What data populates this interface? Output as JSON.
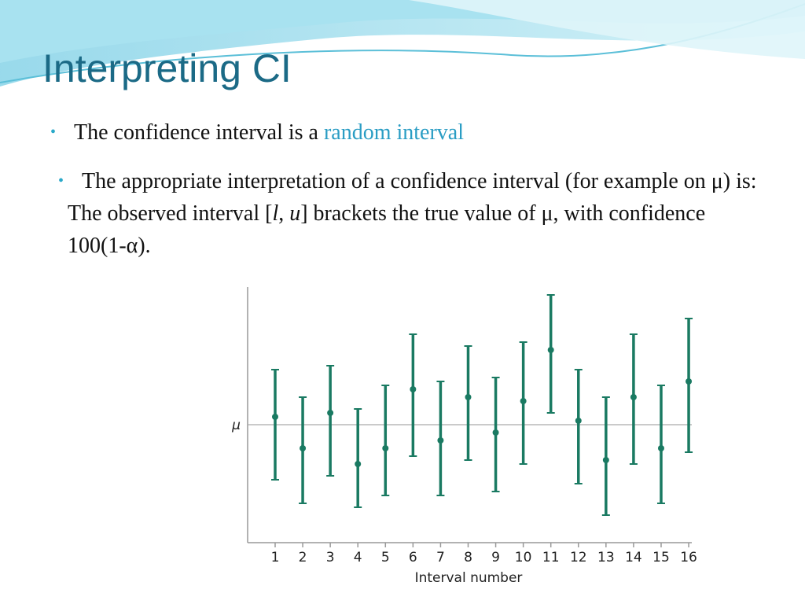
{
  "slide": {
    "title": "Interpreting CI",
    "bullets": [
      [
        "The confidence interval is a ",
        "random interval"
      ],
      [
        "The appropriate interpretation of a confidence interval (for example on μ) is: The observed interval [",
        "l",
        ", ",
        "u",
        "] brackets the true value of μ, with confidence 100(1-α)."
      ]
    ]
  },
  "chart_data": {
    "type": "errorbar",
    "x_label": "Interval number",
    "categories": [
      "1",
      "2",
      "3",
      "4",
      "5",
      "6",
      "7",
      "8",
      "9",
      "10",
      "11",
      "12",
      "13",
      "14",
      "15",
      "16"
    ],
    "values": [
      0.2,
      -0.6,
      0.3,
      -1.0,
      -0.6,
      0.9,
      -0.4,
      0.7,
      -0.2,
      0.6,
      1.9,
      0.1,
      -0.9,
      0.7,
      -0.6,
      1.1
    ],
    "lower": [
      -1.4,
      -2.0,
      -1.3,
      -2.1,
      -1.8,
      -0.8,
      -1.8,
      -0.9,
      -1.7,
      -1.0,
      0.3,
      -1.5,
      -2.3,
      -1.0,
      -2.0,
      -0.7
    ],
    "upper": [
      1.4,
      0.7,
      1.5,
      0.4,
      1.0,
      2.3,
      1.1,
      2.0,
      1.2,
      2.1,
      3.3,
      1.4,
      0.7,
      2.3,
      1.0,
      2.7
    ],
    "color": "#1a7a62",
    "ylim": [
      -3,
      3.5
    ],
    "yticks": [
      {
        "value": 0,
        "label": "μ"
      }
    ],
    "grid": true
  }
}
